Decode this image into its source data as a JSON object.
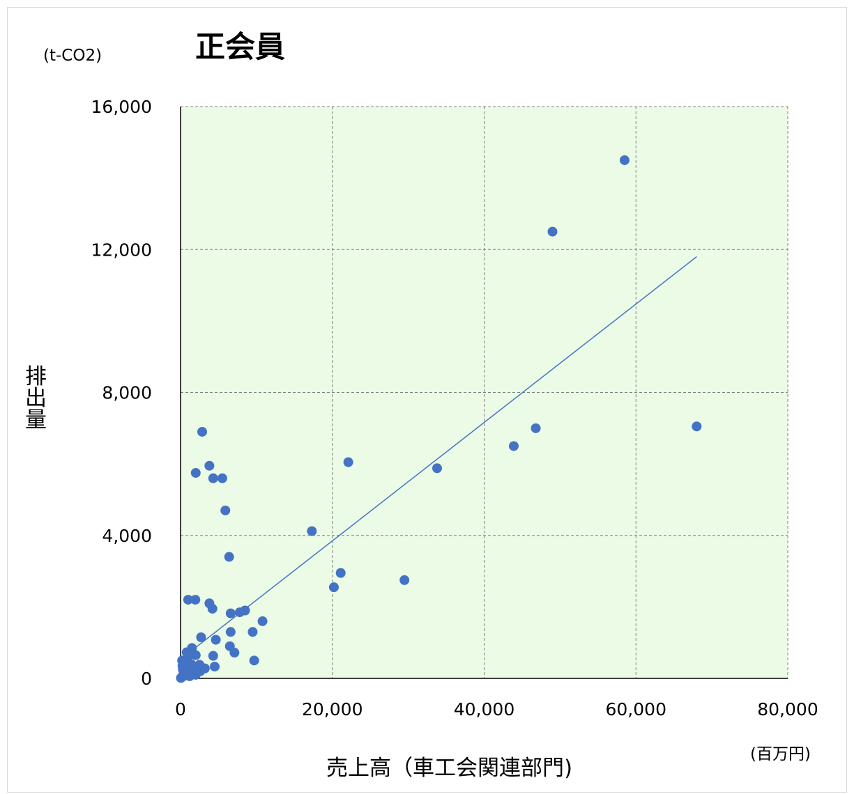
{
  "chart_data": {
    "type": "scatter",
    "title": "正会員",
    "xlabel": "売上高（車工会関連部門)",
    "ylabel": "排出量",
    "x_unit": "(百万円)",
    "y_unit": "(t-CO2)",
    "xlim": [
      0,
      80000
    ],
    "ylim": [
      0,
      16000
    ],
    "x_ticks": [
      "0",
      "20,000",
      "40,000",
      "60,000",
      "80,000"
    ],
    "y_ticks": [
      "0",
      "4,000",
      "8,000",
      "12,000",
      "16,000"
    ],
    "x_tick_values": [
      0,
      20000,
      40000,
      60000,
      80000
    ],
    "y_tick_values": [
      0,
      4000,
      8000,
      12000,
      16000
    ],
    "grid": true,
    "colors": {
      "plot_background": "#ebfbe6",
      "points": "#4472c4",
      "trendline": "#4472c4",
      "grid": "#808080"
    },
    "series": [
      {
        "points": [
          [
            58500,
            14500
          ],
          [
            49000,
            12500
          ],
          [
            68000,
            7050
          ],
          [
            46800,
            7000
          ],
          [
            43900,
            6500
          ],
          [
            33800,
            5880
          ],
          [
            22100,
            6050
          ],
          [
            17300,
            4120
          ],
          [
            21100,
            2950
          ],
          [
            20200,
            2550
          ],
          [
            29500,
            2750
          ],
          [
            2850,
            6900
          ],
          [
            3800,
            5950
          ],
          [
            2000,
            5750
          ],
          [
            4300,
            5600
          ],
          [
            5500,
            5600
          ],
          [
            5900,
            4700
          ],
          [
            6400,
            3400
          ],
          [
            1000,
            2200
          ],
          [
            1950,
            2200
          ],
          [
            3800,
            2100
          ],
          [
            4200,
            1950
          ],
          [
            6600,
            1820
          ],
          [
            7800,
            1850
          ],
          [
            8500,
            1900
          ],
          [
            10800,
            1600
          ],
          [
            9500,
            1300
          ],
          [
            6600,
            1300
          ],
          [
            2700,
            1150
          ],
          [
            4650,
            1080
          ],
          [
            6500,
            900
          ],
          [
            7100,
            720
          ],
          [
            9700,
            500
          ],
          [
            4300,
            630
          ],
          [
            2000,
            650
          ],
          [
            1500,
            850
          ],
          [
            800,
            730
          ],
          [
            4500,
            330
          ],
          [
            3200,
            280
          ],
          [
            2600,
            200
          ],
          [
            2300,
            320
          ],
          [
            1800,
            280
          ],
          [
            1300,
            220
          ],
          [
            1000,
            180
          ],
          [
            700,
            130
          ],
          [
            500,
            90
          ],
          [
            300,
            60
          ],
          [
            150,
            30
          ],
          [
            100,
            20
          ],
          [
            50,
            10
          ],
          [
            300,
            250
          ],
          [
            600,
            400
          ],
          [
            900,
            550
          ],
          [
            200,
            500
          ],
          [
            1100,
            120
          ],
          [
            1400,
            400
          ],
          [
            800,
            300
          ],
          [
            400,
            180
          ],
          [
            2500,
            380
          ],
          [
            600,
            80
          ],
          [
            1200,
            60
          ],
          [
            250,
            350
          ],
          [
            700,
            200
          ],
          [
            1600,
            150
          ],
          [
            2000,
            100
          ]
        ]
      }
    ],
    "trendline": {
      "x": [
        400,
        68000
      ],
      "y": [
        600,
        11800
      ]
    }
  }
}
